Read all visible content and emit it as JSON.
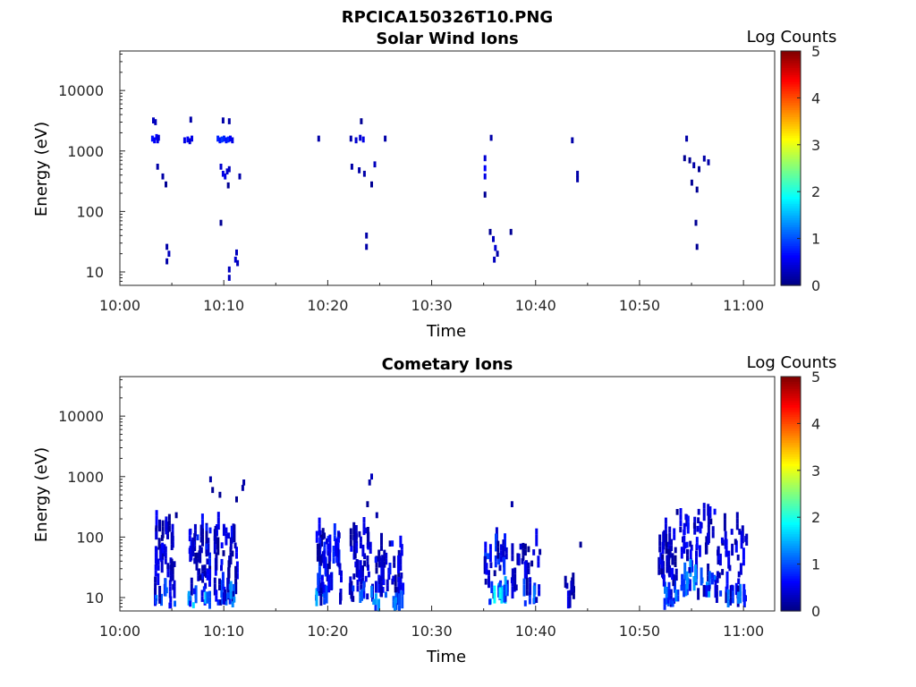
{
  "figure_title": "RPCICA150326T10.PNG",
  "chart_data": [
    {
      "type": "heatmap",
      "title": "Solar Wind Ions",
      "xlabel": "Time",
      "ylabel": "Energy (eV)",
      "yscale": "log",
      "ylim": [
        6,
        45000
      ],
      "xlim": [
        "10:00",
        "11:03"
      ],
      "x_ticks": [
        "10:00",
        "10:10",
        "10:20",
        "10:30",
        "10:40",
        "10:50",
        "11:00"
      ],
      "y_ticks": [
        "10",
        "100",
        "1000",
        "10000"
      ],
      "colorbar": {
        "label": "Log Counts",
        "range": [
          0,
          5
        ],
        "ticks": [
          "0",
          "1",
          "2",
          "3",
          "4",
          "5"
        ],
        "colormap": "jet"
      },
      "cells": [
        {
          "t": 3.1,
          "e": 3200,
          "v": 0.3
        },
        {
          "t": 3.3,
          "e": 3000,
          "v": 0.3
        },
        {
          "t": 3.0,
          "e": 1600,
          "v": 0.7
        },
        {
          "t": 3.2,
          "e": 1500,
          "v": 0.6
        },
        {
          "t": 3.4,
          "e": 1700,
          "v": 0.6
        },
        {
          "t": 3.5,
          "e": 1500,
          "v": 0.5
        },
        {
          "t": 3.6,
          "e": 1650,
          "v": 0.4
        },
        {
          "t": 3.5,
          "e": 550,
          "v": 0.2
        },
        {
          "t": 4.0,
          "e": 380,
          "v": 0.2
        },
        {
          "t": 4.3,
          "e": 280,
          "v": 0.1
        },
        {
          "t": 4.4,
          "e": 26,
          "v": 0.2
        },
        {
          "t": 4.6,
          "e": 20,
          "v": 0.3
        },
        {
          "t": 4.4,
          "e": 15,
          "v": 0.2
        },
        {
          "t": 6.1,
          "e": 1500,
          "v": 0.5
        },
        {
          "t": 6.4,
          "e": 1550,
          "v": 0.6
        },
        {
          "t": 6.6,
          "e": 1450,
          "v": 0.4
        },
        {
          "t": 6.8,
          "e": 1600,
          "v": 0.5
        },
        {
          "t": 6.7,
          "e": 3300,
          "v": 0.2
        },
        {
          "t": 9.3,
          "e": 1600,
          "v": 0.8
        },
        {
          "t": 9.5,
          "e": 1500,
          "v": 0.7
        },
        {
          "t": 9.7,
          "e": 1550,
          "v": 0.9
        },
        {
          "t": 9.9,
          "e": 1600,
          "v": 0.8
        },
        {
          "t": 10.1,
          "e": 1500,
          "v": 0.7
        },
        {
          "t": 10.3,
          "e": 1550,
          "v": 0.8
        },
        {
          "t": 10.5,
          "e": 1600,
          "v": 0.6
        },
        {
          "t": 10.7,
          "e": 1500,
          "v": 0.5
        },
        {
          "t": 9.8,
          "e": 3200,
          "v": 0.2
        },
        {
          "t": 10.4,
          "e": 3100,
          "v": 0.2
        },
        {
          "t": 9.6,
          "e": 550,
          "v": 0.4
        },
        {
          "t": 9.8,
          "e": 420,
          "v": 0.5
        },
        {
          "t": 10.0,
          "e": 380,
          "v": 0.5
        },
        {
          "t": 10.2,
          "e": 460,
          "v": 0.4
        },
        {
          "t": 10.4,
          "e": 500,
          "v": 0.3
        },
        {
          "t": 11.4,
          "e": 380,
          "v": 0.2
        },
        {
          "t": 10.3,
          "e": 270,
          "v": 0.1
        },
        {
          "t": 9.6,
          "e": 65,
          "v": 0.1
        },
        {
          "t": 10.4,
          "e": 11,
          "v": 0.3
        },
        {
          "t": 10.4,
          "e": 8,
          "v": 0.3
        },
        {
          "t": 11.0,
          "e": 16,
          "v": 0.4
        },
        {
          "t": 11.1,
          "e": 21,
          "v": 0.3
        },
        {
          "t": 11.2,
          "e": 14,
          "v": 0.3
        },
        {
          "t": 19.0,
          "e": 1600,
          "v": 0.2
        },
        {
          "t": 22.1,
          "e": 1600,
          "v": 0.2
        },
        {
          "t": 22.6,
          "e": 1500,
          "v": 0.4
        },
        {
          "t": 23.0,
          "e": 1650,
          "v": 0.4
        },
        {
          "t": 23.3,
          "e": 1550,
          "v": 0.5
        },
        {
          "t": 23.1,
          "e": 3100,
          "v": 0.1
        },
        {
          "t": 25.4,
          "e": 1600,
          "v": 0.2
        },
        {
          "t": 22.2,
          "e": 550,
          "v": 0.2
        },
        {
          "t": 22.9,
          "e": 480,
          "v": 0.2
        },
        {
          "t": 23.4,
          "e": 420,
          "v": 0.2
        },
        {
          "t": 24.4,
          "e": 600,
          "v": 0.3
        },
        {
          "t": 24.1,
          "e": 280,
          "v": 0.1
        },
        {
          "t": 23.6,
          "e": 40,
          "v": 0.2
        },
        {
          "t": 23.6,
          "e": 26,
          "v": 0.2
        },
        {
          "t": 35.0,
          "e": 760,
          "v": 0.4
        },
        {
          "t": 35.0,
          "e": 520,
          "v": 0.6
        },
        {
          "t": 35.0,
          "e": 380,
          "v": 0.5
        },
        {
          "t": 35.6,
          "e": 1650,
          "v": 0.2
        },
        {
          "t": 35.0,
          "e": 190,
          "v": 0.1
        },
        {
          "t": 35.5,
          "e": 46,
          "v": 0.1
        },
        {
          "t": 35.8,
          "e": 35,
          "v": 0.3
        },
        {
          "t": 36.0,
          "e": 25,
          "v": 0.4
        },
        {
          "t": 35.9,
          "e": 16,
          "v": 0.3
        },
        {
          "t": 36.2,
          "e": 20,
          "v": 0.2
        },
        {
          "t": 37.5,
          "e": 46,
          "v": 0.1
        },
        {
          "t": 43.4,
          "e": 1500,
          "v": 0.2
        },
        {
          "t": 43.9,
          "e": 420,
          "v": 0.2
        },
        {
          "t": 43.9,
          "e": 340,
          "v": 0.2
        },
        {
          "t": 54.4,
          "e": 1600,
          "v": 0.2
        },
        {
          "t": 54.2,
          "e": 760,
          "v": 0.1
        },
        {
          "t": 54.7,
          "e": 700,
          "v": 0.1
        },
        {
          "t": 55.1,
          "e": 580,
          "v": 0.2
        },
        {
          "t": 55.6,
          "e": 500,
          "v": 0.1
        },
        {
          "t": 56.1,
          "e": 750,
          "v": 0.2
        },
        {
          "t": 56.5,
          "e": 650,
          "v": 0.2
        },
        {
          "t": 54.9,
          "e": 300,
          "v": 0.1
        },
        {
          "t": 55.4,
          "e": 230,
          "v": 0.1
        },
        {
          "t": 55.3,
          "e": 65,
          "v": 0.1
        },
        {
          "t": 55.4,
          "e": 26,
          "v": 0.1
        }
      ]
    },
    {
      "type": "heatmap",
      "title": "Cometary Ions",
      "xlabel": "Time",
      "ylabel": "Energy (eV)",
      "yscale": "log",
      "ylim": [
        6,
        45000
      ],
      "xlim": [
        "10:00",
        "11:03"
      ],
      "x_ticks": [
        "10:00",
        "10:10",
        "10:20",
        "10:30",
        "10:40",
        "10:50",
        "11:00"
      ],
      "y_ticks": [
        "10",
        "100",
        "1000",
        "10000"
      ],
      "colorbar": {
        "label": "Log Counts",
        "range": [
          0,
          5
        ],
        "ticks": [
          "0",
          "1",
          "2",
          "3",
          "4",
          "5"
        ],
        "colormap": "jet"
      },
      "cells": [],
      "clusters": [
        {
          "t0": 3.2,
          "t1": 5.2,
          "emin": 7,
          "emax": 180,
          "vmax": 1.2,
          "n": 55,
          "seed": 11
        },
        {
          "t0": 6.5,
          "t1": 8.6,
          "emin": 7,
          "emax": 140,
          "vmax": 1.6,
          "n": 60,
          "seed": 12
        },
        {
          "t0": 9.0,
          "t1": 11.3,
          "emin": 7,
          "emax": 160,
          "vmax": 1.3,
          "n": 55,
          "seed": 13
        },
        {
          "t0": 18.7,
          "t1": 21.2,
          "emin": 8,
          "emax": 120,
          "vmax": 1.7,
          "n": 60,
          "seed": 21
        },
        {
          "t0": 22.0,
          "t1": 24.2,
          "emin": 9,
          "emax": 130,
          "vmax": 1.2,
          "n": 50,
          "seed": 22
        },
        {
          "t0": 24.2,
          "t1": 27.2,
          "emin": 6,
          "emax": 90,
          "vmax": 1.4,
          "n": 55,
          "seed": 23
        },
        {
          "t0": 35.0,
          "t1": 37.2,
          "emin": 8,
          "emax": 90,
          "vmax": 1.8,
          "n": 45,
          "seed": 31
        },
        {
          "t0": 37.6,
          "t1": 40.4,
          "emin": 8,
          "emax": 80,
          "vmax": 1.1,
          "n": 35,
          "seed": 32
        },
        {
          "t0": 42.6,
          "t1": 43.6,
          "emin": 7,
          "emax": 20,
          "vmax": 0.7,
          "n": 10,
          "seed": 33
        },
        {
          "t0": 51.6,
          "t1": 53.6,
          "emin": 7,
          "emax": 120,
          "vmax": 1.2,
          "n": 45,
          "seed": 41
        },
        {
          "t0": 53.8,
          "t1": 57.3,
          "emin": 10,
          "emax": 270,
          "vmax": 1.3,
          "n": 75,
          "seed": 42
        },
        {
          "t0": 57.3,
          "t1": 60.2,
          "emin": 7,
          "emax": 150,
          "vmax": 1.2,
          "n": 55,
          "seed": 43
        }
      ],
      "sparse": [
        {
          "t": 8.6,
          "e": 900,
          "v": 0.2
        },
        {
          "t": 8.8,
          "e": 600,
          "v": 0.1
        },
        {
          "t": 9.5,
          "e": 500,
          "v": 0.1
        },
        {
          "t": 11.8,
          "e": 800,
          "v": 0.2
        },
        {
          "t": 11.7,
          "e": 650,
          "v": 0.2
        },
        {
          "t": 11.1,
          "e": 420,
          "v": 0.1
        },
        {
          "t": 24.1,
          "e": 1000,
          "v": 0.3
        },
        {
          "t": 23.9,
          "e": 800,
          "v": 0.2
        },
        {
          "t": 23.7,
          "e": 350,
          "v": 0.1
        },
        {
          "t": 24.6,
          "e": 230,
          "v": 0.2
        },
        {
          "t": 37.6,
          "e": 350,
          "v": 0.2
        },
        {
          "t": 44.2,
          "e": 75,
          "v": 0.1
        },
        {
          "t": 5.3,
          "e": 230,
          "v": 0.1
        },
        {
          "t": 53.5,
          "e": 260,
          "v": 0.1
        }
      ]
    }
  ]
}
